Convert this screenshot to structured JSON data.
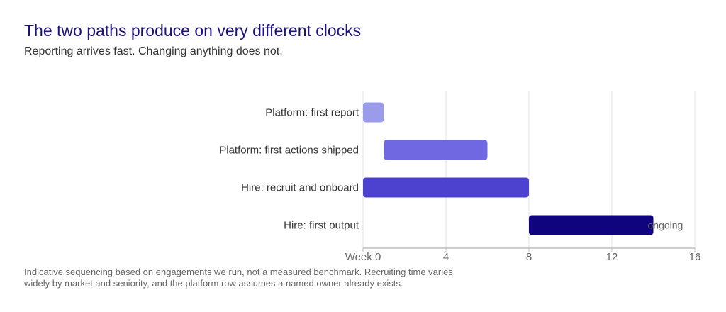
{
  "header": {
    "title": "The two paths produce on very different clocks",
    "subtitle": "Reporting arrives fast. Changing anything does not."
  },
  "footnote": "Indicative sequencing based on engagements we run, not a measured benchmark. Recruiting time varies widely by market and seniority, and the platform row assumes a named owner already exists.",
  "colors": {
    "title": "#1a1380",
    "bar1": "#9a9bea",
    "bar2": "#6f68e0",
    "bar3": "#4d42cf",
    "bar4": "#10047e",
    "grid": "#e3e3e3",
    "axis": "#bdbdbd",
    "label": "#333333",
    "tick": "#666666"
  },
  "chart_data": {
    "type": "bar",
    "orientation": "horizontal",
    "subtype": "gantt",
    "x_unit": "week",
    "xlim": [
      0,
      16
    ],
    "xticks": [
      0,
      4,
      8,
      12,
      16
    ],
    "xtick_labels": [
      "Week 0",
      "4",
      "8",
      "12",
      "16"
    ],
    "grid": true,
    "tasks": [
      {
        "label": "Platform: first report",
        "start": 0,
        "end": 1
      },
      {
        "label": "Platform: first actions shipped",
        "start": 1,
        "end": 6
      },
      {
        "label": "Hire: recruit and onboard",
        "start": 0,
        "end": 8
      },
      {
        "label": "Hire: first output",
        "start": 8,
        "end": 14,
        "annotation": "ongoing"
      }
    ]
  }
}
